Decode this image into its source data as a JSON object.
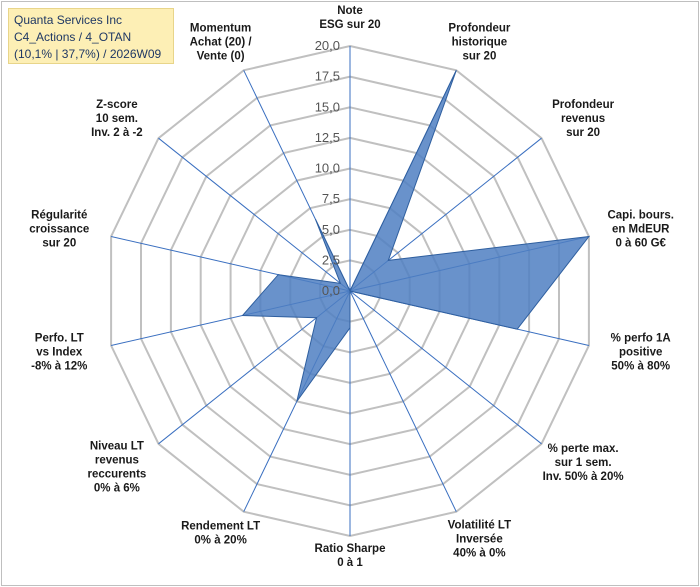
{
  "header": {
    "line1": "Quanta Services Inc",
    "line2": "C4_Actions / 4_OTAN",
    "line3": "(10,1% | 37,7%) / 2026W09"
  },
  "chart_data": {
    "type": "radar",
    "rmin": 0,
    "rmax": 20,
    "ticks": [
      0,
      2.5,
      5,
      7.5,
      10,
      12.5,
      15,
      17.5,
      20
    ],
    "tick_labels": [
      "0,0",
      "2,5",
      "5,0",
      "7,5",
      "10,0",
      "12,5",
      "15,0",
      "17,5",
      "20,0"
    ],
    "axes": [
      {
        "label": [
          "Note",
          "ESG sur 20"
        ],
        "value": 0
      },
      {
        "label": [
          "Profondeur",
          "historique",
          "sur 20"
        ],
        "value": 20
      },
      {
        "label": [
          "Profondeur",
          "revenus",
          "sur 20"
        ],
        "value": 4
      },
      {
        "label": [
          "Capi. bours.",
          "en MdEUR",
          "0 à 60 G€"
        ],
        "value": 20
      },
      {
        "label": [
          "% perfo 1A",
          "positive",
          "50% à 80%"
        ],
        "value": 14
      },
      {
        "label": [
          "% perte max.",
          "sur 1 sem.",
          "Inv. 50% à 20%"
        ],
        "value": 0
      },
      {
        "label": [
          "Volatilité LT",
          "Inversée",
          "40% à 0%"
        ],
        "value": 0
      },
      {
        "label": [
          "Ratio Sharpe",
          "0 à 1"
        ],
        "value": 3
      },
      {
        "label": [
          "Rendement LT",
          "0% à 20%"
        ],
        "value": 10
      },
      {
        "label": [
          "Niveau LT",
          "revenus",
          "reccurents",
          "0% à 6%"
        ],
        "value": 3.5
      },
      {
        "label": [
          "Perfo. LT",
          "vs Index",
          "-8% à 12%"
        ],
        "value": 9
      },
      {
        "label": [
          "Régularité",
          "croissance",
          "sur 20"
        ],
        "value": 6
      },
      {
        "label": [
          "Z-score",
          "10 sem.",
          "Inv. 2 à -2"
        ],
        "value": 1
      },
      {
        "label": [
          "Momentum",
          "Achat (20) /",
          "Vente (0)"
        ],
        "value": 6.5
      }
    ],
    "colors": {
      "fill": "#4f7fc2",
      "stroke": "#2f5f9f",
      "grid": "#c0c0c0",
      "spoke": "#3a6fc0",
      "label": "#1a1a1a",
      "tick": "#555555"
    }
  }
}
